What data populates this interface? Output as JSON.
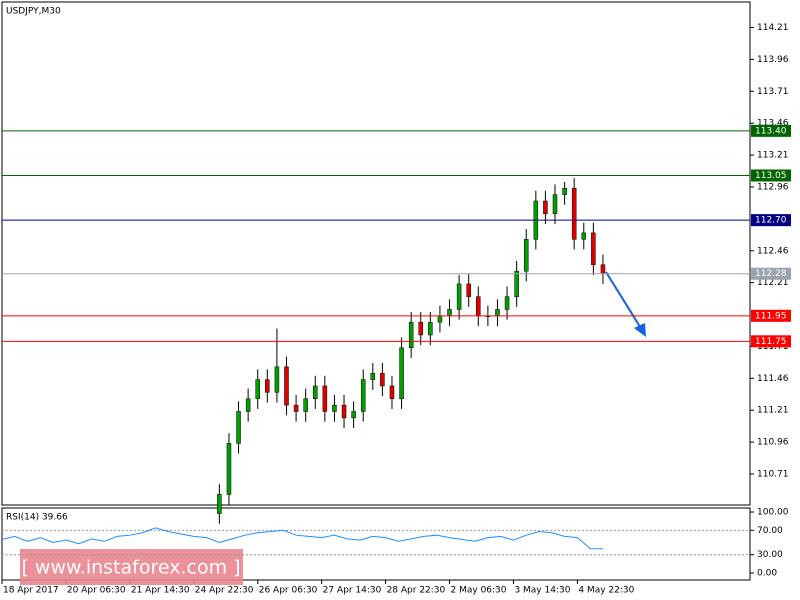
{
  "chart_data": [
    {
      "type": "candlestick",
      "title": "USDJPY,M30",
      "x": [
        34,
        35.5,
        37,
        38.5,
        40,
        41.5,
        43,
        44.5,
        46,
        47.5,
        49,
        50.5,
        52,
        53.5,
        55,
        56.5,
        58,
        59.5,
        61,
        62.5,
        64,
        65.5,
        67,
        68.5,
        70,
        71.5,
        73,
        74.5,
        76,
        77.5,
        79,
        80.5,
        82,
        83.5,
        85,
        86.5,
        88,
        89.5,
        91,
        92.5,
        94
      ],
      "open": [
        110.4,
        110.55,
        110.95,
        111.2,
        111.3,
        111.45,
        111.35,
        111.55,
        111.25,
        111.2,
        111.3,
        111.4,
        111.2,
        111.25,
        111.15,
        111.2,
        111.45,
        111.5,
        111.4,
        111.3,
        111.7,
        111.9,
        111.8,
        111.9,
        111.95,
        112.0,
        112.2,
        112.1,
        111.95,
        111.95,
        112.0,
        112.1,
        112.3,
        112.55,
        112.85,
        112.75,
        112.9,
        112.95,
        112.55,
        112.6,
        112.35
      ],
      "close": [
        110.55,
        110.95,
        111.2,
        111.3,
        111.45,
        111.35,
        111.55,
        111.25,
        111.2,
        111.3,
        111.4,
        111.2,
        111.25,
        111.15,
        111.2,
        111.45,
        111.5,
        111.4,
        111.3,
        111.7,
        111.9,
        111.8,
        111.9,
        111.95,
        112.0,
        112.2,
        112.1,
        111.95,
        111.95,
        112.0,
        112.1,
        112.3,
        112.55,
        112.85,
        112.75,
        112.9,
        112.95,
        112.55,
        112.6,
        112.35,
        112.28
      ],
      "high": [
        110.63,
        111.03,
        111.28,
        111.38,
        111.53,
        111.53,
        111.85,
        111.63,
        111.33,
        111.38,
        111.48,
        111.48,
        111.33,
        111.33,
        111.28,
        111.53,
        111.58,
        111.58,
        111.48,
        111.78,
        111.98,
        111.98,
        111.98,
        112.03,
        112.08,
        112.27,
        112.28,
        112.18,
        112.03,
        112.08,
        112.18,
        112.38,
        112.63,
        112.93,
        112.93,
        112.98,
        113.0,
        113.03,
        112.68,
        112.68,
        112.43
      ],
      "low": [
        110.32,
        110.47,
        110.87,
        111.12,
        111.22,
        111.27,
        111.27,
        111.17,
        111.12,
        111.12,
        111.22,
        111.12,
        111.12,
        111.07,
        111.07,
        111.12,
        111.37,
        111.32,
        111.22,
        111.22,
        111.62,
        111.72,
        111.72,
        111.82,
        111.87,
        111.92,
        112.02,
        111.87,
        111.87,
        111.87,
        111.92,
        112.02,
        112.22,
        112.47,
        112.67,
        112.67,
        112.82,
        112.47,
        112.47,
        112.27,
        112.2
      ],
      "up_color": "#00a000",
      "down_color": "#e00000",
      "xlim": [
        0,
        117
      ],
      "ylim": [
        110.467,
        114.41
      ],
      "xticks": [
        {
          "value": 0,
          "label": "18 Apr 2017"
        },
        {
          "value": 10,
          "label": "20 Apr 06:30"
        },
        {
          "value": 20,
          "label": "21 Apr 14:30"
        },
        {
          "value": 30,
          "label": "24 Apr 22:30"
        },
        {
          "value": 40,
          "label": "26 Apr 06:30"
        },
        {
          "value": 50,
          "label": "27 Apr 14:30"
        },
        {
          "value": 60,
          "label": "28 Apr 22:30"
        },
        {
          "value": 70,
          "label": "2 May 06:30"
        },
        {
          "value": 80,
          "label": "3 May 14:30"
        },
        {
          "value": 90,
          "label": "4 May 22:30"
        }
      ],
      "yticks": [
        114.21,
        113.96,
        113.71,
        113.46,
        113.21,
        112.96,
        112.46,
        112.21,
        111.71,
        111.46,
        111.21,
        110.96,
        110.71
      ],
      "levels": [
        {
          "value": 113.4,
          "label": "113.40",
          "color": "#006400"
        },
        {
          "value": 113.05,
          "label": "113.05",
          "color": "#006400"
        },
        {
          "value": 112.7,
          "label": "112.70",
          "color": "#000080"
        },
        {
          "value": 112.28,
          "label": "112.28",
          "color": "#9aa3ae"
        },
        {
          "value": 111.95,
          "label": "111.95",
          "color": "#ff0000"
        },
        {
          "value": 111.75,
          "label": "111.75",
          "color": "#ff0000"
        }
      ],
      "watermark": "[ www.instaforex.com ]"
    },
    {
      "type": "line",
      "title": "RSI(14) 39.66",
      "color": "#1e90ff",
      "x": [
        0,
        2,
        4,
        6,
        8,
        10,
        12,
        14,
        16,
        18,
        20,
        22,
        24,
        26,
        28,
        30,
        32,
        34,
        36,
        38,
        40,
        42,
        44,
        46,
        48,
        50,
        52,
        54,
        56,
        58,
        60,
        62,
        64,
        66,
        68,
        70,
        72,
        74,
        76,
        78,
        80,
        82,
        84,
        86,
        88,
        90,
        92,
        94
      ],
      "values": [
        55,
        60,
        52,
        58,
        50,
        54,
        48,
        56,
        52,
        60,
        62,
        66,
        74,
        68,
        64,
        60,
        58,
        50,
        56,
        62,
        66,
        68,
        70,
        62,
        60,
        58,
        62,
        56,
        54,
        60,
        58,
        52,
        56,
        60,
        62,
        58,
        55,
        52,
        58,
        60,
        54,
        62,
        68,
        66,
        60,
        58,
        40,
        39.66
      ],
      "xlim": [
        0,
        117
      ],
      "ylim": [
        -11.5,
        106.6
      ],
      "yticks": [
        {
          "value": 100,
          "label": "100.00"
        },
        {
          "value": 70,
          "label": "70.00"
        },
        {
          "value": 30,
          "label": "30.00"
        },
        {
          "value": 0,
          "label": "0.00"
        }
      ]
    }
  ]
}
